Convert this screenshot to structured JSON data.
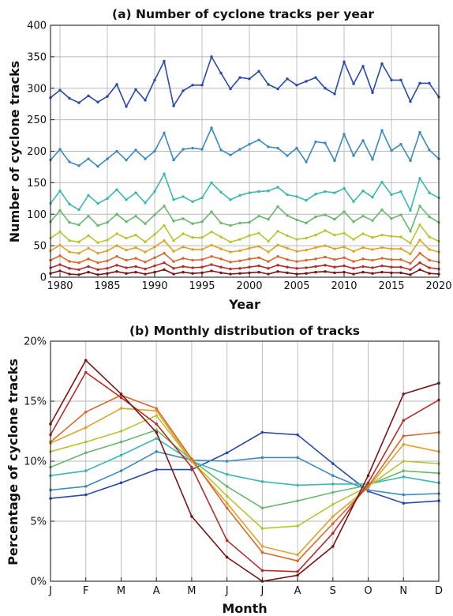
{
  "chart_data": [
    {
      "type": "line",
      "title": "(a) Number of cyclone tracks per year",
      "xlabel": "Year",
      "ylabel": "Number of cyclone tracks",
      "xlim": [
        1979,
        2020
      ],
      "ylim": [
        0,
        400
      ],
      "xticks": [
        "1980",
        "1985",
        "1990",
        "1995",
        "2000",
        "2005",
        "2010",
        "2015",
        "2020"
      ],
      "yticks": [
        "0",
        "50",
        "100",
        "150",
        "200",
        "250",
        "300",
        "350",
        "400"
      ],
      "grid": true,
      "markers": true,
      "x": [
        1979,
        1980,
        1981,
        1982,
        1983,
        1984,
        1985,
        1986,
        1987,
        1988,
        1989,
        1990,
        1991,
        1992,
        1993,
        1994,
        1995,
        1996,
        1997,
        1998,
        1999,
        2000,
        2001,
        2002,
        2003,
        2004,
        2005,
        2006,
        2007,
        2008,
        2009,
        2010,
        2011,
        2012,
        2013,
        2014,
        2015,
        2016,
        2017,
        2018,
        2019,
        2020
      ],
      "series": [
        {
          "color": "#2a4aa8",
          "values": [
            285,
            297,
            284,
            277,
            288,
            278,
            287,
            306,
            271,
            298,
            281,
            313,
            343,
            272,
            296,
            305,
            305,
            350,
            324,
            299,
            317,
            315,
            327,
            306,
            299,
            315,
            305,
            311,
            317,
            300,
            291,
            342,
            307,
            335,
            293,
            339,
            313,
            313,
            279,
            308,
            308,
            286
          ]
        },
        {
          "color": "#3a8abf",
          "values": [
            186,
            203,
            183,
            177,
            188,
            176,
            188,
            200,
            186,
            202,
            188,
            200,
            229,
            186,
            203,
            205,
            203,
            237,
            202,
            194,
            203,
            211,
            218,
            207,
            205,
            193,
            205,
            183,
            215,
            213,
            185,
            227,
            193,
            217,
            187,
            233,
            201,
            211,
            185,
            230,
            202,
            188
          ]
        },
        {
          "color": "#3bb8b0",
          "values": [
            117,
            137,
            116,
            107,
            130,
            117,
            125,
            139,
            123,
            134,
            118,
            136,
            164,
            123,
            128,
            120,
            126,
            150,
            135,
            123,
            130,
            134,
            136,
            137,
            143,
            131,
            128,
            122,
            132,
            136,
            134,
            141,
            120,
            137,
            127,
            151,
            131,
            136,
            106,
            157,
            134,
            126
          ]
        },
        {
          "color": "#69b86e",
          "values": [
            88,
            106,
            87,
            83,
            97,
            82,
            87,
            100,
            88,
            97,
            85,
            99,
            113,
            89,
            93,
            85,
            88,
            104,
            86,
            82,
            86,
            87,
            97,
            92,
            112,
            98,
            91,
            86,
            96,
            99,
            92,
            104,
            88,
            97,
            90,
            107,
            93,
            99,
            73,
            113,
            96,
            87
          ]
        },
        {
          "color": "#b9c432",
          "values": [
            62,
            72,
            58,
            56,
            66,
            55,
            59,
            69,
            62,
            67,
            56,
            68,
            82,
            58,
            69,
            63,
            63,
            72,
            64,
            56,
            60,
            66,
            70,
            57,
            73,
            66,
            60,
            62,
            67,
            74,
            67,
            70,
            60,
            69,
            63,
            67,
            65,
            64,
            54,
            83,
            64,
            57
          ]
        },
        {
          "color": "#e0a32a",
          "values": [
            42,
            51,
            40,
            38,
            46,
            38,
            42,
            50,
            43,
            47,
            40,
            48,
            58,
            41,
            48,
            44,
            44,
            51,
            45,
            40,
            42,
            46,
            49,
            40,
            51,
            46,
            41,
            43,
            47,
            50,
            45,
            48,
            41,
            47,
            44,
            47,
            45,
            45,
            37,
            59,
            44,
            40
          ]
        },
        {
          "color": "#d9682a",
          "values": [
            27,
            34,
            25,
            23,
            29,
            23,
            26,
            33,
            27,
            30,
            24,
            31,
            38,
            25,
            30,
            27,
            28,
            33,
            29,
            24,
            26,
            29,
            31,
            25,
            33,
            28,
            25,
            27,
            29,
            32,
            28,
            31,
            25,
            29,
            27,
            30,
            28,
            28,
            22,
            38,
            27,
            24
          ]
        },
        {
          "color": "#b52d2a",
          "values": [
            15,
            20,
            14,
            12,
            17,
            12,
            14,
            19,
            15,
            17,
            13,
            18,
            23,
            14,
            17,
            15,
            16,
            20,
            16,
            13,
            14,
            16,
            18,
            14,
            19,
            16,
            14,
            15,
            17,
            19,
            16,
            18,
            14,
            17,
            15,
            18,
            16,
            16,
            12,
            23,
            15,
            13
          ]
        },
        {
          "color": "#7a1414",
          "values": [
            6,
            10,
            5,
            4,
            8,
            4,
            6,
            9,
            6,
            8,
            5,
            8,
            12,
            5,
            8,
            6,
            7,
            10,
            7,
            5,
            6,
            7,
            8,
            5,
            9,
            7,
            5,
            6,
            8,
            9,
            7,
            8,
            5,
            8,
            6,
            8,
            7,
            7,
            4,
            12,
            6,
            5
          ]
        }
      ]
    },
    {
      "type": "line",
      "title": "(b) Monthly distribution of tracks",
      "xlabel": "Month",
      "ylabel": "Percentage of cyclone tracks",
      "categories": [
        "J",
        "F",
        "M",
        "A",
        "M",
        "J",
        "J",
        "A",
        "S",
        "O",
        "N",
        "D"
      ],
      "ylim": [
        0,
        20
      ],
      "yticks": [
        "0%",
        "5%",
        "10%",
        "15%",
        "20%"
      ],
      "grid": true,
      "markers": true,
      "series": [
        {
          "color": "#2a4aa8",
          "values": [
            6.9,
            7.2,
            8.2,
            9.3,
            9.3,
            10.7,
            12.4,
            12.2,
            9.8,
            7.5,
            6.5,
            6.7
          ]
        },
        {
          "color": "#3a8abf",
          "values": [
            7.6,
            7.9,
            9.2,
            10.8,
            10.1,
            10.0,
            10.3,
            10.3,
            8.8,
            7.6,
            7.2,
            7.3
          ]
        },
        {
          "color": "#3bb8b0",
          "values": [
            8.8,
            9.2,
            10.5,
            11.9,
            10.0,
            8.9,
            8.3,
            8.0,
            8.1,
            8.1,
            8.7,
            8.2
          ]
        },
        {
          "color": "#69b86e",
          "values": [
            9.5,
            10.7,
            11.6,
            12.6,
            10.1,
            7.9,
            6.1,
            6.7,
            7.4,
            8.0,
            9.2,
            9.0
          ]
        },
        {
          "color": "#b9c432",
          "values": [
            10.8,
            11.6,
            12.5,
            13.8,
            10.0,
            7.1,
            4.4,
            4.6,
            6.4,
            7.9,
            10.0,
            9.8
          ]
        },
        {
          "color": "#e0a32a",
          "values": [
            11.5,
            12.8,
            14.4,
            14.2,
            10.0,
            6.5,
            2.9,
            2.2,
            5.4,
            7.8,
            11.4,
            10.8
          ]
        },
        {
          "color": "#d9682a",
          "values": [
            11.6,
            14.1,
            15.5,
            14.4,
            10.2,
            6.1,
            2.4,
            1.7,
            4.8,
            7.9,
            12.1,
            12.4
          ]
        },
        {
          "color": "#b52d2a",
          "values": [
            12.2,
            17.4,
            15.3,
            13.1,
            9.5,
            3.4,
            0.9,
            0.8,
            4.0,
            8.2,
            13.4,
            15.1
          ]
        },
        {
          "color": "#7a1414",
          "values": [
            13.1,
            18.4,
            15.6,
            12.4,
            5.4,
            2.0,
            0.0,
            0.5,
            2.9,
            8.8,
            15.6,
            16.5
          ]
        }
      ]
    }
  ]
}
